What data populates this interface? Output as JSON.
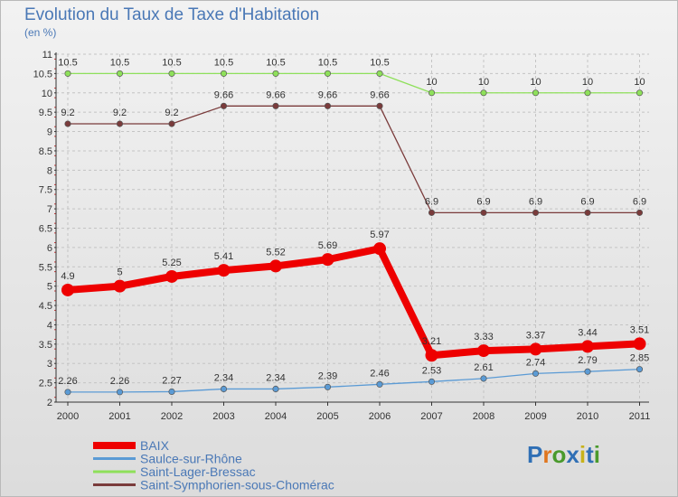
{
  "title": "Evolution du Taux de Taxe d'Habitation",
  "subtitle": "(en %)",
  "logo": {
    "text": "Proxiti",
    "letter_colors": [
      "#2f6fb5",
      "#e0761f",
      "#4a9a2c",
      "#2f6fb5",
      "#c8b21a",
      "#2f6fb5",
      "#4a9a2c"
    ]
  },
  "chart_data": {
    "type": "line",
    "title": "Evolution du Taux de Taxe d'Habitation",
    "subtitle": "(en %)",
    "categories": [
      "2000",
      "2001",
      "2002",
      "2003",
      "2004",
      "2005",
      "2006",
      "2007",
      "2008",
      "2009",
      "2010",
      "2011"
    ],
    "ylim": [
      2,
      11
    ],
    "yticks": [
      "2",
      "2.5",
      "3",
      "3.5",
      "4",
      "4.5",
      "5",
      "5.5",
      "6",
      "6.5",
      "7",
      "7.5",
      "8",
      "8.5",
      "9",
      "9.5",
      "10",
      "10.5",
      "11"
    ],
    "grid": "dashed",
    "legend_position": "bottom-left",
    "series": [
      {
        "name": "BAIX",
        "color": "#ee0000",
        "values": [
          4.9,
          5,
          5.25,
          5.41,
          5.52,
          5.69,
          5.97,
          3.21,
          3.33,
          3.37,
          3.44,
          3.51
        ],
        "labels": [
          "4.9",
          "5",
          "5.25",
          "5.41",
          "5.52",
          "5.69",
          "5.97",
          "3.21",
          "3.33",
          "3.37",
          "3.44",
          "3.51"
        ]
      },
      {
        "name": "Saulce-sur-Rhône",
        "color": "#5b9bd5",
        "values": [
          2.26,
          2.26,
          2.27,
          2.34,
          2.34,
          2.39,
          2.46,
          2.53,
          2.61,
          2.74,
          2.79,
          2.85
        ],
        "labels": [
          "2.26",
          "2.26",
          "2.27",
          "2.34",
          "2.34",
          "2.39",
          "2.46",
          "2.53",
          "2.61",
          "2.74",
          "2.79",
          "2.85"
        ]
      },
      {
        "name": "Saint-Lager-Bressac",
        "color": "#8ee05a",
        "values": [
          10.5,
          10.5,
          10.5,
          10.5,
          10.5,
          10.5,
          10.5,
          10,
          10,
          10,
          10,
          10
        ],
        "labels": [
          "10.5",
          "10.5",
          "10.5",
          "10.5",
          "10.5",
          "10.5",
          "10.5",
          "10",
          "10",
          "10",
          "10",
          "10"
        ]
      },
      {
        "name": "Saint-Symphorien-sous-Chomérac",
        "color": "#7a3b3b",
        "values": [
          9.2,
          9.2,
          9.2,
          9.66,
          9.66,
          9.66,
          9.66,
          6.9,
          6.9,
          6.9,
          6.9,
          6.9
        ],
        "labels": [
          "9.2",
          "9.2",
          "9.2",
          "9.66",
          "9.66",
          "9.66",
          "9.66",
          "6.9",
          "6.9",
          "6.9",
          "6.9",
          "6.9"
        ]
      }
    ]
  }
}
